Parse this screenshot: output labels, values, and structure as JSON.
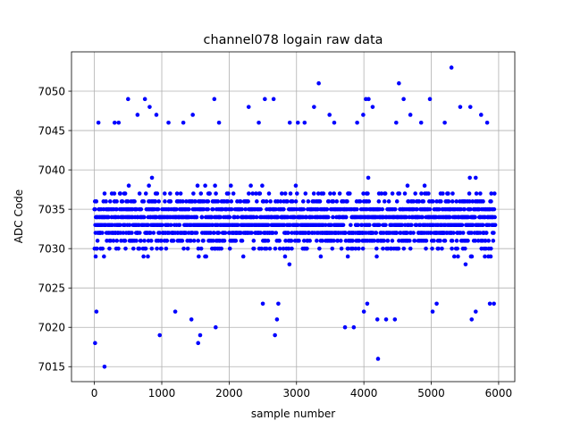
{
  "chart_data": {
    "type": "scatter",
    "title": "channel078 logain raw data",
    "xlabel": "sample number",
    "ylabel": "ADC Code",
    "xlim": [
      -340,
      6240
    ],
    "ylim": [
      7013.1,
      7055.0
    ],
    "xticks": [
      0,
      1000,
      2000,
      3000,
      4000,
      5000,
      6000
    ],
    "yticks": [
      7015,
      7020,
      7025,
      7030,
      7035,
      7040,
      7045,
      7050
    ],
    "grid": true,
    "legend": "none",
    "marker_color": "#0000ff",
    "n_samples": 5950,
    "x_range": [
      0,
      5950
    ],
    "y_min": 7015,
    "y_max": 7053,
    "dense_band": [
      7026,
      7041
    ],
    "series": [
      {
        "points": [
          [
            10,
            7018
          ],
          [
            150,
            7015
          ],
          [
            970,
            7019
          ],
          [
            1540,
            7018
          ],
          [
            1570,
            7019
          ],
          [
            1800,
            7020
          ],
          [
            2680,
            7019
          ],
          [
            2710,
            7021
          ],
          [
            4210,
            7016
          ],
          [
            4200,
            7021
          ],
          [
            4330,
            7021
          ],
          [
            4460,
            7021
          ],
          [
            3720,
            7020
          ],
          [
            3850,
            7020
          ],
          [
            30,
            7022
          ],
          [
            1200,
            7022
          ],
          [
            1440,
            7021
          ],
          [
            2500,
            7023
          ],
          [
            2730,
            7023
          ],
          [
            4000,
            7022
          ],
          [
            4050,
            7023
          ],
          [
            5020,
            7022
          ],
          [
            5080,
            7023
          ],
          [
            5600,
            7021
          ],
          [
            5660,
            7022
          ],
          [
            5870,
            7023
          ],
          [
            5930,
            7023
          ],
          [
            60,
            7046
          ],
          [
            500,
            7049
          ],
          [
            640,
            7047
          ],
          [
            750,
            7049
          ],
          [
            820,
            7048
          ],
          [
            920,
            7047
          ],
          [
            1460,
            7047
          ],
          [
            1780,
            7049
          ],
          [
            2290,
            7048
          ],
          [
            2530,
            7049
          ],
          [
            2660,
            7049
          ],
          [
            3260,
            7048
          ],
          [
            3330,
            7051
          ],
          [
            3490,
            7047
          ],
          [
            3990,
            7047
          ],
          [
            4030,
            7049
          ],
          [
            4070,
            7049
          ],
          [
            4130,
            7048
          ],
          [
            4520,
            7051
          ],
          [
            4590,
            7049
          ],
          [
            4690,
            7047
          ],
          [
            4980,
            7049
          ],
          [
            5300,
            7053
          ],
          [
            5430,
            7048
          ],
          [
            5580,
            7048
          ],
          [
            5740,
            7047
          ],
          [
            5830,
            7046
          ],
          [
            300,
            7046
          ],
          [
            360,
            7046
          ],
          [
            1100,
            7046
          ],
          [
            1320,
            7046
          ],
          [
            1850,
            7046
          ],
          [
            2440,
            7046
          ],
          [
            2900,
            7046
          ],
          [
            3020,
            7046
          ],
          [
            3120,
            7046
          ],
          [
            3560,
            7046
          ],
          [
            3900,
            7046
          ],
          [
            4480,
            7046
          ],
          [
            4850,
            7046
          ],
          [
            5200,
            7046
          ]
        ]
      }
    ]
  }
}
